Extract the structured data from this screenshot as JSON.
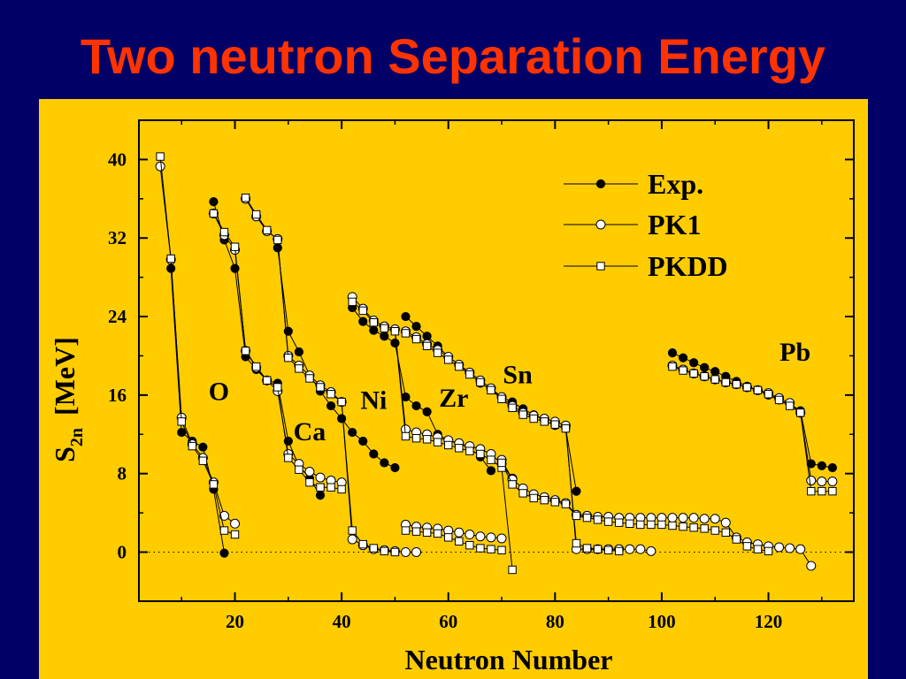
{
  "slide": {
    "title": "Two neutron Separation Energy",
    "background": "#000066",
    "title_color": "#ff3300",
    "panel_color": "#ffcc00"
  },
  "chart_data": {
    "type": "line",
    "xlabel": "Neutron Number",
    "ylabel_main": "S",
    "ylabel_sub": "2n",
    "ylabel_unit": "[MeV]",
    "xlim": [
      2,
      136
    ],
    "ylim": [
      -5,
      44
    ],
    "xticks": [
      20,
      40,
      60,
      80,
      100,
      120
    ],
    "yticks": [
      0,
      8,
      16,
      24,
      32,
      40
    ],
    "grid": false,
    "zero_line": "dotted",
    "legend_position": "top-right",
    "series": [
      {
        "name": "Exp.",
        "marker": "filled-circle",
        "segments": [
          {
            "x": [
              8,
              10,
              12,
              14,
              16,
              18
            ],
            "y": [
              28.9,
              12.2,
              11.3,
              10.7,
              6.4,
              -0.1
            ]
          },
          {
            "x": [
              16,
              18,
              20,
              22,
              24,
              26,
              28,
              30,
              32,
              34,
              36
            ],
            "y": [
              35.7,
              31.8,
              28.9,
              19.9,
              18.6,
              17.5,
              17.2,
              11.3,
              8.8,
              7.5,
              5.8
            ]
          },
          {
            "x": [
              28,
              30,
              32,
              34,
              36,
              38,
              40,
              42,
              44,
              46,
              48,
              50
            ],
            "y": [
              31.0,
              22.5,
              20.4,
              18.0,
              16.4,
              14.9,
              13.6,
              12.2,
              11.3,
              10.0,
              9.1,
              8.6
            ]
          },
          {
            "x": [
              42,
              44,
              46,
              48,
              50,
              52,
              54,
              56,
              58,
              60,
              62,
              64,
              66,
              68
            ],
            "y": [
              24.9,
              23.5,
              22.6,
              22.0,
              21.3,
              15.8,
              14.9,
              14.3,
              12.0,
              11.4,
              11.0,
              10.6,
              9.7,
              8.3
            ]
          },
          {
            "x": [
              52,
              54,
              56,
              58,
              60,
              62,
              64,
              66,
              68,
              70,
              72,
              74,
              76,
              78,
              80,
              82,
              84
            ],
            "y": [
              24.0,
              23.0,
              22.0,
              21.0,
              19.9,
              19.1,
              18.2,
              17.2,
              16.6,
              15.8,
              15.3,
              14.6,
              14.0,
              13.4,
              12.9,
              12.6,
              6.2
            ]
          },
          {
            "x": [
              102,
              104,
              106,
              108,
              110,
              112,
              114,
              116,
              118,
              120,
              122,
              124,
              126,
              128,
              130,
              132
            ],
            "y": [
              20.3,
              19.8,
              19.3,
              18.8,
              18.4,
              17.9,
              17.4,
              16.9,
              16.5,
              16.0,
              15.5,
              15.1,
              14.4,
              9.0,
              8.8,
              8.6
            ]
          }
        ]
      },
      {
        "name": "PK1",
        "marker": "open-circle",
        "segments": [
          {
            "x": [
              6,
              8,
              10,
              12,
              14,
              16,
              18,
              20
            ],
            "y": [
              39.3,
              29.8,
              13.7,
              11.0,
              9.6,
              7.1,
              3.7,
              2.9
            ]
          },
          {
            "x": [
              16,
              18,
              20,
              22,
              24,
              26,
              28,
              30,
              32,
              34,
              36,
              38,
              40
            ],
            "y": [
              34.5,
              32.3,
              30.8,
              20.5,
              18.8,
              17.5,
              16.4,
              10.0,
              9.0,
              8.2,
              7.6,
              7.3,
              7.1
            ]
          },
          {
            "x": [
              22,
              24,
              26,
              28,
              30,
              32,
              34,
              36,
              38,
              40,
              42,
              44,
              46,
              48,
              50,
              52,
              54
            ],
            "y": [
              36.0,
              34.2,
              32.7,
              31.9,
              20.0,
              19.0,
              18.0,
              17.0,
              16.3,
              15.3,
              1.3,
              0.7,
              0.3,
              0.2,
              0.1,
              0.0,
              0.0
            ]
          },
          {
            "x": [
              42,
              44,
              46,
              48,
              50,
              52,
              54,
              56,
              58,
              60,
              62,
              64,
              66,
              68,
              70,
              72
            ],
            "y": [
              26.0,
              24.8,
              23.6,
              23.0,
              22.7,
              12.5,
              12.2,
              12.0,
              11.7,
              11.4,
              11.1,
              10.8,
              10.5,
              10.0,
              9.0,
              7.5
            ]
          },
          {
            "x": [
              52,
              54,
              56,
              58,
              60,
              62,
              64,
              66,
              68,
              70,
              72,
              74,
              76,
              78,
              80,
              82,
              84,
              86,
              88,
              90,
              92,
              94,
              96,
              98
            ],
            "y": [
              22.5,
              21.9,
              21.2,
              20.6,
              19.9,
              19.1,
              18.3,
              17.5,
              16.7,
              15.8,
              14.9,
              14.2,
              13.9,
              13.6,
              13.3,
              12.9,
              0.3,
              0.3,
              0.3,
              0.3,
              0.3,
              0.3,
              0.3,
              0.1
            ]
          },
          {
            "x": [
              52,
              54,
              56,
              58,
              60,
              62,
              64,
              66,
              68,
              70
            ],
            "y": [
              2.8,
              2.6,
              2.5,
              2.4,
              2.2,
              2.0,
              1.8,
              1.6,
              1.5,
              1.4
            ]
          },
          {
            "x": [
              70,
              72,
              74,
              76,
              78,
              80,
              82,
              84,
              86,
              88,
              90,
              92,
              94,
              96,
              98,
              100,
              102,
              104,
              106,
              108,
              110,
              112,
              114,
              116,
              118,
              120,
              122,
              124,
              126,
              128
            ],
            "y": [
              9.4,
              7.4,
              6.5,
              5.9,
              5.6,
              5.3,
              5.0,
              3.8,
              3.7,
              3.6,
              3.6,
              3.5,
              3.5,
              3.5,
              3.5,
              3.5,
              3.5,
              3.5,
              3.5,
              3.4,
              3.4,
              3.0,
              1.5,
              1.0,
              0.8,
              0.6,
              0.5,
              0.4,
              0.3,
              -1.4
            ]
          },
          {
            "x": [
              102,
              104,
              106,
              108,
              110,
              112,
              114,
              116,
              118,
              120,
              122,
              124,
              126,
              128,
              130,
              132
            ],
            "y": [
              19.0,
              18.6,
              18.2,
              17.9,
              17.6,
              17.3,
              17.1,
              16.8,
              16.5,
              16.2,
              15.7,
              15.2,
              14.2,
              7.3,
              7.2,
              7.2
            ]
          }
        ]
      },
      {
        "name": "PKDD",
        "marker": "open-square",
        "segments": [
          {
            "x": [
              6,
              8,
              10,
              12,
              14,
              16,
              18,
              20
            ],
            "y": [
              40.3,
              29.9,
              13.3,
              10.8,
              9.3,
              6.9,
              2.2,
              1.8
            ]
          },
          {
            "x": [
              16,
              18,
              20,
              22,
              24,
              26,
              28,
              30,
              32,
              34,
              36,
              38,
              40
            ],
            "y": [
              34.5,
              32.6,
              31.1,
              20.5,
              18.9,
              17.5,
              16.8,
              9.6,
              8.4,
              7.1,
              6.6,
              6.6,
              6.4
            ]
          },
          {
            "x": [
              22,
              24,
              26,
              28,
              30,
              32,
              34,
              36,
              38,
              40,
              42,
              44,
              46,
              48,
              50
            ],
            "y": [
              36.1,
              34.4,
              32.8,
              31.8,
              19.8,
              18.7,
              17.7,
              16.8,
              16.1,
              15.3,
              2.2,
              0.8,
              0.4,
              0.1,
              0.0
            ]
          },
          {
            "x": [
              42,
              44,
              46,
              48,
              50,
              52,
              54,
              56,
              58,
              60,
              62,
              64,
              66,
              68,
              70,
              72
            ],
            "y": [
              25.5,
              24.6,
              23.4,
              22.8,
              22.5,
              11.8,
              11.6,
              11.5,
              11.2,
              10.9,
              10.6,
              10.3,
              10.0,
              9.4,
              8.6,
              -1.8
            ]
          },
          {
            "x": [
              52,
              54,
              56,
              58,
              60,
              62,
              64,
              66,
              68,
              70,
              72,
              74,
              76,
              78,
              80,
              82,
              84,
              86,
              88,
              90,
              92
            ],
            "y": [
              22.3,
              21.7,
              21.0,
              20.3,
              19.6,
              18.9,
              18.1,
              17.3,
              16.5,
              15.6,
              14.7,
              14.0,
              13.6,
              13.3,
              13.0,
              12.6,
              0.9,
              0.4,
              0.3,
              0.2,
              0.1
            ]
          },
          {
            "x": [
              52,
              54,
              56,
              58,
              60,
              62,
              64,
              66,
              68,
              70
            ],
            "y": [
              2.2,
              2.1,
              2.0,
              1.9,
              1.5,
              1.1,
              0.7,
              0.4,
              0.3,
              0.2
            ]
          },
          {
            "x": [
              70,
              72,
              74,
              76,
              78,
              80,
              82,
              84,
              86,
              88,
              90,
              92,
              94,
              96,
              98,
              100,
              102,
              104,
              106,
              108,
              110,
              112,
              114,
              116,
              118,
              120
            ],
            "y": [
              9.1,
              6.9,
              6.0,
              5.5,
              5.3,
              5.1,
              4.9,
              3.7,
              3.5,
              3.3,
              3.1,
              3.0,
              2.9,
              2.8,
              2.8,
              2.8,
              2.7,
              2.6,
              2.5,
              2.4,
              2.2,
              2.0,
              1.3,
              0.6,
              0.3,
              0.1
            ]
          },
          {
            "x": [
              102,
              104,
              106,
              108,
              110,
              112,
              114,
              116,
              118,
              120,
              122,
              124,
              126,
              128,
              130,
              132
            ],
            "y": [
              18.9,
              18.5,
              18.2,
              17.9,
              17.6,
              17.3,
              17.1,
              16.8,
              16.5,
              16.1,
              15.5,
              14.9,
              14.2,
              6.2,
              6.2,
              6.2
            ]
          }
        ]
      }
    ],
    "annotations": [
      {
        "text": "O",
        "x": 17,
        "y": 15.5
      },
      {
        "text": "Ca",
        "x": 34,
        "y": 11.4
      },
      {
        "text": "Ni",
        "x": 46,
        "y": 14.6
      },
      {
        "text": "Zr",
        "x": 61,
        "y": 14.8
      },
      {
        "text": "Sn",
        "x": 73,
        "y": 17.2
      },
      {
        "text": "Pb",
        "x": 125,
        "y": 19.5
      }
    ]
  }
}
